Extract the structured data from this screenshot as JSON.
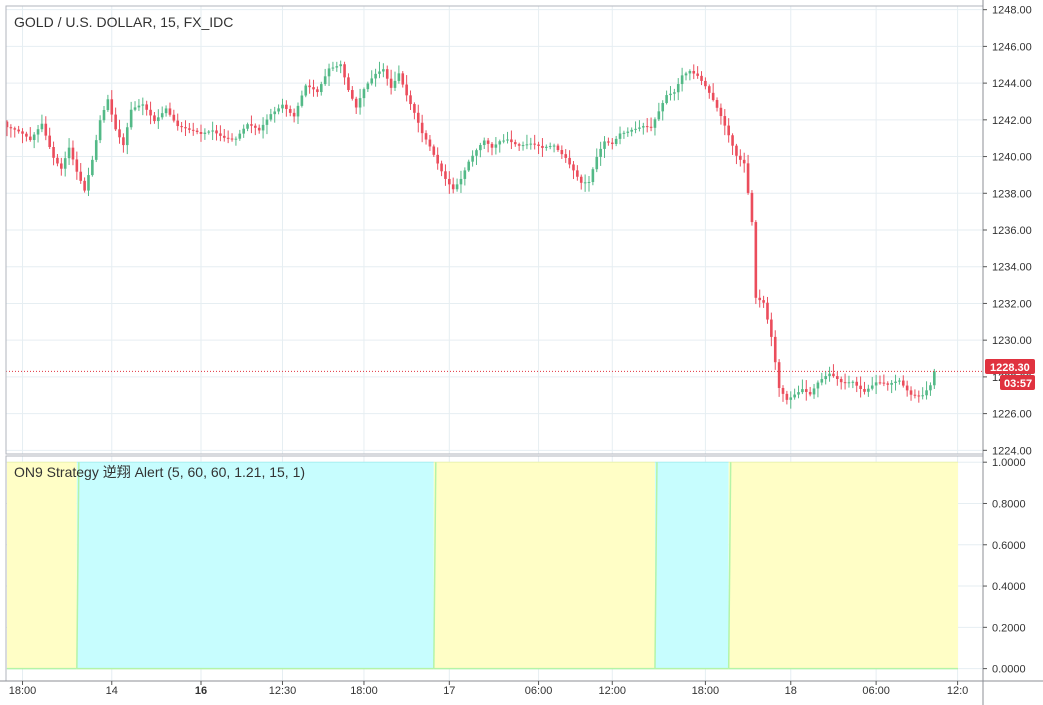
{
  "main_pane": {
    "title": "GOLD / U.S. DOLLAR, 15, FX_IDC",
    "price_badge": "1228.30",
    "countdown_badge": "03:57"
  },
  "indicator_pane": {
    "title": "ON9 Strategy 逆翔 Alert (5, 60, 60, 1.21, 15, 1)"
  },
  "colors": {
    "up": "#53b987",
    "down": "#eb4d5c",
    "grid": "#e6eef2",
    "axis_text": "#333333",
    "price_line": "#e0323f",
    "badge_bg": "#e0323f",
    "zone_yellow": "#fffec6",
    "zone_yellow_line": "#ecf3b0",
    "zone_cyan": "#c7fdfe",
    "zone_cyan_line": "#a9f0f0",
    "zone_edge": "#b4f4a8"
  },
  "chart_data": [
    {
      "type": "candlestick",
      "title": "GOLD / U.S. DOLLAR, 15, FX_IDC",
      "ylim": [
        1223.8,
        1248.2
      ],
      "yticks": [
        "1224.00",
        "1226.00",
        "1228.00",
        "1230.00",
        "1232.00",
        "1234.00",
        "1236.00",
        "1238.00",
        "1240.00",
        "1242.00",
        "1244.00",
        "1246.00",
        "1248.00"
      ],
      "last_price": 1228.3,
      "grid": true,
      "close_path": [
        [
          0,
          1241.6
        ],
        [
          6,
          1240.8
        ],
        [
          9,
          1241.9
        ],
        [
          12,
          1240.1
        ],
        [
          14,
          1239.4
        ],
        [
          16,
          1240.4
        ],
        [
          18,
          1239.0
        ],
        [
          20,
          1238.0
        ],
        [
          22,
          1239.8
        ],
        [
          24,
          1242.1
        ],
        [
          26,
          1243.3
        ],
        [
          28,
          1241.6
        ],
        [
          30,
          1240.6
        ],
        [
          32,
          1242.4
        ],
        [
          35,
          1242.7
        ],
        [
          38,
          1242.0
        ],
        [
          41,
          1242.8
        ],
        [
          44,
          1241.7
        ],
        [
          47,
          1241.3
        ],
        [
          50,
          1241.1
        ],
        [
          53,
          1241.5
        ],
        [
          56,
          1241.2
        ],
        [
          59,
          1241.0
        ],
        [
          62,
          1241.6
        ],
        [
          65,
          1241.3
        ],
        [
          68,
          1242.4
        ],
        [
          71,
          1243.0
        ],
        [
          74,
          1242.2
        ],
        [
          77,
          1243.7
        ],
        [
          80,
          1243.4
        ],
        [
          83,
          1244.9
        ],
        [
          86,
          1245.2
        ],
        [
          88,
          1243.7
        ],
        [
          90,
          1242.6
        ],
        [
          92,
          1243.5
        ],
        [
          95,
          1244.4
        ],
        [
          97,
          1244.8
        ],
        [
          99,
          1243.9
        ],
        [
          101,
          1244.7
        ],
        [
          103,
          1243.4
        ],
        [
          105,
          1242.3
        ],
        [
          107,
          1241.1
        ],
        [
          109,
          1240.4
        ],
        [
          111,
          1239.6
        ],
        [
          113,
          1238.9
        ],
        [
          115,
          1238.4
        ],
        [
          117,
          1238.9
        ],
        [
          119,
          1239.7
        ],
        [
          121,
          1240.2
        ],
        [
          123,
          1240.7
        ],
        [
          125,
          1240.4
        ],
        [
          127,
          1240.9
        ],
        [
          129,
          1241.1
        ],
        [
          132,
          1240.7
        ],
        [
          135,
          1240.6
        ],
        [
          138,
          1240.3
        ],
        [
          141,
          1240.6
        ],
        [
          144,
          1240.1
        ],
        [
          146,
          1239.4
        ],
        [
          148,
          1238.6
        ],
        [
          150,
          1238.5
        ],
        [
          152,
          1239.8
        ],
        [
          154,
          1240.7
        ],
        [
          156,
          1240.7
        ],
        [
          158,
          1241.4
        ],
        [
          161,
          1241.6
        ],
        [
          164,
          1241.6
        ],
        [
          166,
          1241.4
        ],
        [
          168,
          1242.3
        ],
        [
          170,
          1243.3
        ],
        [
          172,
          1243.6
        ],
        [
          174,
          1244.6
        ],
        [
          176,
          1244.8
        ],
        [
          178,
          1244.4
        ],
        [
          180,
          1243.7
        ],
        [
          182,
          1242.9
        ],
        [
          184,
          1242.1
        ],
        [
          186,
          1241.2
        ],
        [
          188,
          1240.2
        ],
        [
          190,
          1239.8
        ],
        [
          192,
          1236.5
        ],
        [
          193,
          1232.3
        ],
        [
          195,
          1231.9
        ],
        [
          197,
          1230.0
        ],
        [
          199,
          1227.3
        ],
        [
          201,
          1226.8
        ],
        [
          203,
          1227.2
        ],
        [
          205,
          1227.5
        ],
        [
          207,
          1227.1
        ],
        [
          209,
          1227.6
        ],
        [
          212,
          1228.0
        ],
        [
          215,
          1227.7
        ],
        [
          218,
          1227.9
        ],
        [
          221,
          1227.3
        ],
        [
          224,
          1227.6
        ],
        [
          227,
          1227.4
        ],
        [
          230,
          1227.8
        ],
        [
          233,
          1227.2
        ],
        [
          236,
          1227.1
        ],
        [
          238,
          1227.5
        ],
        [
          239,
          1228.3
        ]
      ]
    },
    {
      "type": "area",
      "title": "ON9 Strategy 逆翔 Alert (5, 60, 60, 1.21, 15, 1)",
      "ylim": [
        -0.06,
        1.03
      ],
      "yticks": [
        "0.0000",
        "0.2000",
        "0.4000",
        "0.6000",
        "0.8000",
        "1.0000"
      ],
      "series": [
        {
          "values": [
            0,
            0,
            0,
            0,
            0,
            0,
            0,
            0,
            0,
            0,
            0,
            0,
            0,
            0,
            0,
            0,
            0,
            0,
            1,
            1,
            1,
            1,
            1,
            1,
            1,
            1,
            1,
            1,
            1,
            1,
            1,
            1,
            1,
            1,
            1,
            1,
            1,
            1,
            1,
            1,
            1,
            1,
            1,
            1,
            1,
            1,
            1,
            1,
            1,
            1,
            1,
            1,
            1,
            1,
            1,
            1,
            1,
            1,
            1,
            1,
            1,
            1,
            1,
            1,
            1,
            1,
            1,
            1,
            1,
            1,
            1,
            1,
            1,
            1,
            1,
            1,
            1,
            1,
            1,
            1,
            1,
            1,
            1,
            1,
            1,
            1,
            1,
            1,
            1,
            1,
            1,
            1,
            1,
            1,
            1,
            1,
            1,
            1,
            1,
            1,
            1,
            1,
            1,
            1,
            1,
            1,
            1,
            1,
            1,
            1,
            0,
            0,
            0,
            0,
            0,
            0,
            0,
            0,
            0,
            0,
            0,
            0,
            0,
            0,
            0,
            0,
            0,
            0,
            0,
            0,
            0,
            0,
            0,
            0,
            0,
            0,
            0,
            0,
            0,
            0,
            0,
            0,
            0,
            0,
            0,
            0,
            0,
            0,
            0,
            0,
            0,
            0,
            0,
            0,
            0,
            0,
            0,
            0,
            0,
            0,
            0,
            0,
            0,
            0,
            0,
            0,
            0,
            1,
            1,
            1,
            1,
            1,
            1,
            1,
            1,
            1,
            1,
            1,
            1,
            1,
            1,
            1,
            1,
            1,
            1,
            1,
            0,
            0,
            0,
            0,
            0,
            0,
            0,
            0,
            0,
            0,
            0,
            0,
            0,
            0,
            0,
            0,
            0,
            0,
            0,
            0,
            0,
            0,
            0,
            0,
            0,
            0,
            0,
            0,
            0,
            0,
            0,
            0,
            0,
            0,
            0,
            0,
            0,
            0,
            0,
            0,
            0,
            0,
            0,
            0,
            0,
            0,
            0,
            0,
            0,
            0,
            0,
            0,
            0,
            0,
            0,
            0,
            0,
            0,
            0,
            0,
            0,
            0,
            0,
            0,
            0
          ]
        }
      ]
    }
  ],
  "x_axis": {
    "ticks": [
      {
        "bar": 4,
        "label": "18:00",
        "bold": false
      },
      {
        "bar": 27,
        "label": "14",
        "bold": false
      },
      {
        "bar": 50,
        "label": "16",
        "bold": true
      },
      {
        "bar": 71,
        "label": "12:30",
        "bold": false
      },
      {
        "bar": 92,
        "label": "18:00",
        "bold": false
      },
      {
        "bar": 114,
        "label": "17",
        "bold": false
      },
      {
        "bar": 137,
        "label": "06:00",
        "bold": false
      },
      {
        "bar": 156,
        "label": "12:00",
        "bold": false
      },
      {
        "bar": 180,
        "label": "18:00",
        "bold": false
      },
      {
        "bar": 202,
        "label": "18",
        "bold": false
      },
      {
        "bar": 224,
        "label": "06:00",
        "bold": false
      },
      {
        "bar": 245,
        "label": "12:0",
        "bold": false
      }
    ]
  }
}
